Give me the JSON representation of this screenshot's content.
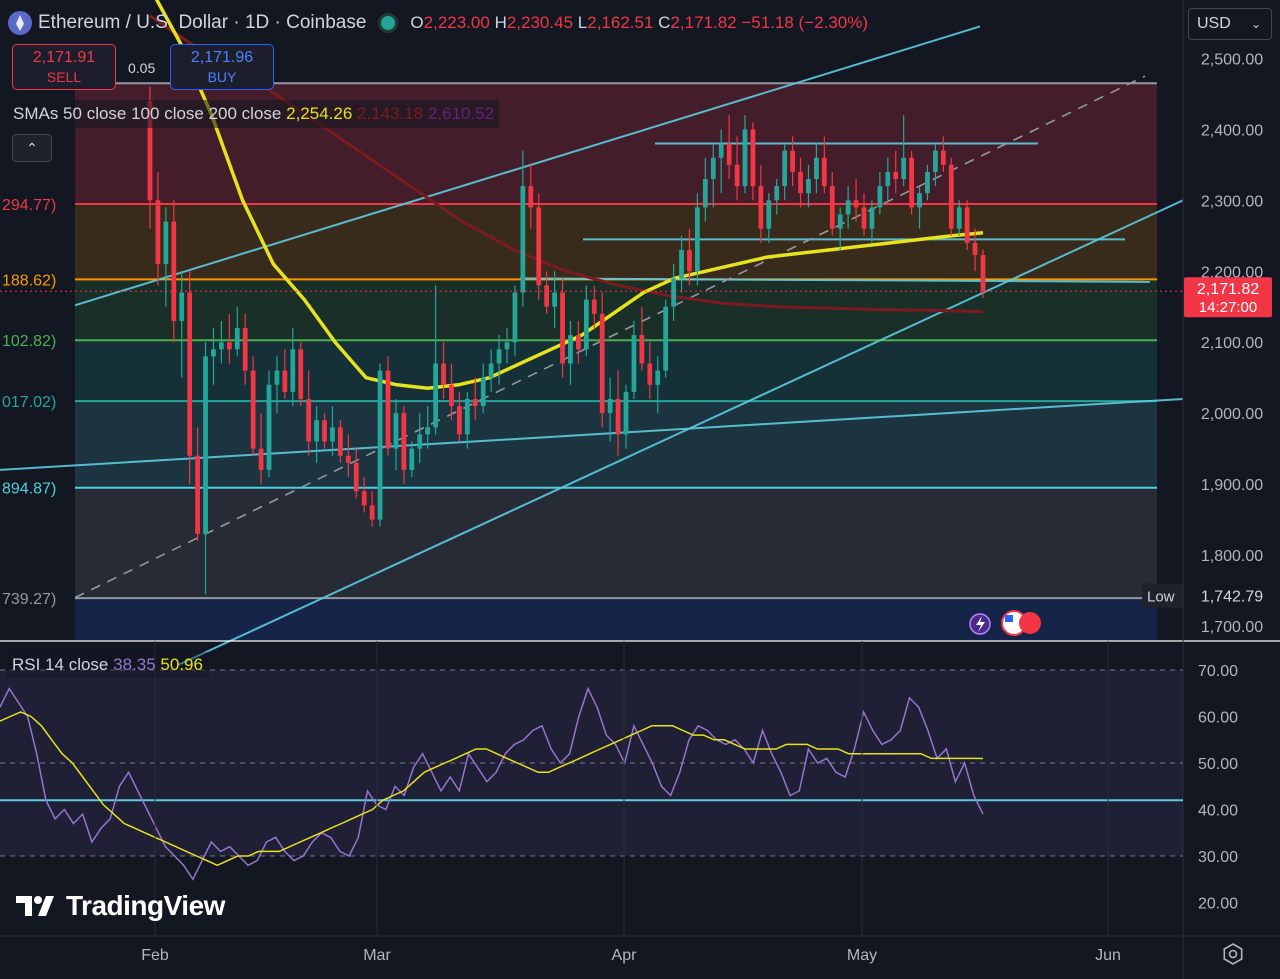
{
  "header": {
    "symbol": "Ethereum / U.S. Dollar · 1D · Coinbase",
    "o_label": "O",
    "o": "2,223.00",
    "h_label": "H",
    "h": "2,230.45",
    "l_label": "L",
    "l": "2,162.51",
    "c_label": "C",
    "c": "2,171.82",
    "change": "−51.18 (−2.30%)"
  },
  "trade": {
    "sell_price": "2,171.91",
    "sell_label": "SELL",
    "spread": "0.05",
    "buy_price": "2,171.96",
    "buy_label": "BUY"
  },
  "currency": "USD",
  "sma_legend": {
    "label": "SMAs 50 close 100 close 200 close",
    "v50": "2,254.26",
    "v100": "2,143.18",
    "v200": "2,610.52"
  },
  "rsi_legend": {
    "label": "RSI 14 close",
    "rsi": "38.35",
    "ma": "50.96"
  },
  "brand": "TradingView",
  "colors": {
    "up": "#26a69a",
    "down": "#f23645",
    "sma50": "#e6e21c",
    "sma100": "#7a1b20",
    "trend": "#5dcbe0",
    "rsi": "#9575cd",
    "rsi_ma": "#e6e21c"
  },
  "chart_data": [
    {
      "type": "candlestick",
      "title": "Ethereum / U.S. Dollar · 1D · Coinbase",
      "x_ticks": [
        "Feb",
        "Mar",
        "Apr",
        "May",
        "Jun"
      ],
      "y_ticks": [
        "2,500.00",
        "2,400.00",
        "2,300.00",
        "2,200.00",
        "2,100.00",
        "2,000.00",
        "1,900.00",
        "1,800.00",
        "1,700.00"
      ],
      "ylim": [
        1680,
        2560
      ],
      "last_price": "2,171.82",
      "countdown": "14:27:00",
      "low_label": "Low",
      "low_value": "1,742.79",
      "fib_levels": [
        {
          "value": 2465,
          "label": "",
          "color": "#9598a1"
        },
        {
          "value": 2294.77,
          "label": "294.77)",
          "color": "#f23645"
        },
        {
          "value": 2188.62,
          "label": "188.62)",
          "color": "#ff9800"
        },
        {
          "value": 2102.82,
          "label": "102.82)",
          "color": "#4caf50"
        },
        {
          "value": 2017.02,
          "label": "017.02)",
          "color": "#26a69a"
        },
        {
          "value": 1894.87,
          "label": "894.87)",
          "color": "#4dd0e1"
        },
        {
          "value": 1739.27,
          "label": "739.27)",
          "color": "#9598a1"
        }
      ],
      "candles": [
        [
          2440,
          2460,
          2260,
          2300
        ],
        [
          2300,
          2340,
          2180,
          2210
        ],
        [
          2210,
          2290,
          2150,
          2270
        ],
        [
          2270,
          2300,
          2100,
          2130
        ],
        [
          2130,
          2200,
          2050,
          2170
        ],
        [
          2170,
          2200,
          1900,
          1940
        ],
        [
          1940,
          1980,
          1820,
          1830
        ],
        [
          1830,
          2100,
          1745,
          2080
        ],
        [
          2080,
          2120,
          2040,
          2090
        ],
        [
          2090,
          2130,
          2070,
          2100
        ],
        [
          2100,
          2140,
          2070,
          2090
        ],
        [
          2090,
          2150,
          2080,
          2120
        ],
        [
          2120,
          2140,
          2040,
          2060
        ],
        [
          2060,
          2080,
          1940,
          1950
        ],
        [
          1950,
          2000,
          1900,
          1920
        ],
        [
          1920,
          2060,
          1910,
          2040
        ],
        [
          2040,
          2080,
          2000,
          2060
        ],
        [
          2060,
          2090,
          2020,
          2030
        ],
        [
          2030,
          2120,
          2010,
          2090
        ],
        [
          2090,
          2100,
          2010,
          2020
        ],
        [
          2020,
          2060,
          1940,
          1960
        ],
        [
          1960,
          2010,
          1930,
          1990
        ],
        [
          1990,
          2000,
          1950,
          1960
        ],
        [
          1960,
          2010,
          1940,
          1980
        ],
        [
          1980,
          1990,
          1930,
          1940
        ],
        [
          1940,
          1970,
          1910,
          1930
        ],
        [
          1930,
          1950,
          1880,
          1890
        ],
        [
          1890,
          1910,
          1860,
          1870
        ],
        [
          1870,
          1890,
          1840,
          1850
        ],
        [
          1850,
          2070,
          1840,
          2060
        ],
        [
          2060,
          2080,
          1940,
          1950
        ],
        [
          1950,
          2020,
          1920,
          2000
        ],
        [
          2000,
          2010,
          1900,
          1920
        ],
        [
          1920,
          1960,
          1910,
          1950
        ],
        [
          1950,
          2000,
          1930,
          1970
        ],
        [
          1970,
          2010,
          1950,
          1980
        ],
        [
          1980,
          2180,
          1970,
          2070
        ],
        [
          2070,
          2100,
          2020,
          2040
        ],
        [
          2040,
          2070,
          1990,
          2010
        ],
        [
          2010,
          2030,
          1960,
          1970
        ],
        [
          1970,
          2030,
          1950,
          2020
        ],
        [
          2020,
          2050,
          1990,
          2010
        ],
        [
          2010,
          2070,
          2000,
          2050
        ],
        [
          2050,
          2090,
          2030,
          2070
        ],
        [
          2070,
          2110,
          2040,
          2090
        ],
        [
          2090,
          2120,
          2070,
          2100
        ],
        [
          2100,
          2180,
          2080,
          2170
        ],
        [
          2170,
          2370,
          2150,
          2320
        ],
        [
          2320,
          2350,
          2260,
          2290
        ],
        [
          2290,
          2310,
          2160,
          2180
        ],
        [
          2180,
          2200,
          2140,
          2150
        ],
        [
          2150,
          2200,
          2120,
          2170
        ],
        [
          2170,
          2190,
          2050,
          2070
        ],
        [
          2070,
          2130,
          2040,
          2110
        ],
        [
          2110,
          2130,
          2070,
          2090
        ],
        [
          2090,
          2180,
          2080,
          2160
        ],
        [
          2160,
          2180,
          2120,
          2140
        ],
        [
          2140,
          2170,
          1980,
          2000
        ],
        [
          2000,
          2050,
          1960,
          2020
        ],
        [
          2020,
          2060,
          1940,
          1970
        ],
        [
          1970,
          2040,
          1950,
          2030
        ],
        [
          2030,
          2130,
          2020,
          2110
        ],
        [
          2110,
          2150,
          2060,
          2070
        ],
        [
          2070,
          2100,
          2020,
          2040
        ],
        [
          2040,
          2080,
          2000,
          2060
        ],
        [
          2060,
          2160,
          2050,
          2150
        ],
        [
          2150,
          2210,
          2130,
          2190
        ],
        [
          2190,
          2250,
          2170,
          2230
        ],
        [
          2230,
          2260,
          2180,
          2200
        ],
        [
          2200,
          2310,
          2180,
          2290
        ],
        [
          2290,
          2360,
          2270,
          2330
        ],
        [
          2330,
          2380,
          2290,
          2360
        ],
        [
          2360,
          2400,
          2310,
          2380
        ],
        [
          2380,
          2420,
          2330,
          2350
        ],
        [
          2350,
          2390,
          2300,
          2320
        ],
        [
          2320,
          2420,
          2310,
          2400
        ],
        [
          2400,
          2410,
          2300,
          2320
        ],
        [
          2320,
          2350,
          2240,
          2260
        ],
        [
          2260,
          2310,
          2240,
          2300
        ],
        [
          2300,
          2330,
          2280,
          2320
        ],
        [
          2320,
          2380,
          2300,
          2370
        ],
        [
          2370,
          2390,
          2320,
          2340
        ],
        [
          2340,
          2360,
          2290,
          2310
        ],
        [
          2310,
          2350,
          2290,
          2330
        ],
        [
          2330,
          2380,
          2310,
          2360
        ],
        [
          2360,
          2390,
          2310,
          2320
        ],
        [
          2320,
          2340,
          2250,
          2260
        ],
        [
          2260,
          2290,
          2230,
          2280
        ],
        [
          2280,
          2320,
          2260,
          2300
        ],
        [
          2300,
          2330,
          2270,
          2290
        ],
        [
          2290,
          2310,
          2250,
          2260
        ],
        [
          2260,
          2300,
          2240,
          2290
        ],
        [
          2290,
          2340,
          2280,
          2320
        ],
        [
          2320,
          2360,
          2300,
          2340
        ],
        [
          2340,
          2370,
          2310,
          2330
        ],
        [
          2330,
          2420,
          2320,
          2360
        ],
        [
          2360,
          2370,
          2280,
          2290
        ],
        [
          2290,
          2320,
          2260,
          2310
        ],
        [
          2310,
          2350,
          2300,
          2340
        ],
        [
          2340,
          2380,
          2320,
          2370
        ],
        [
          2370,
          2390,
          2340,
          2350
        ],
        [
          2350,
          2360,
          2250,
          2260
        ],
        [
          2260,
          2300,
          2250,
          2290
        ],
        [
          2290,
          2300,
          2230,
          2240
        ],
        [
          2240,
          2260,
          2200,
          2223
        ],
        [
          2223,
          2230.45,
          2162.51,
          2171.82
        ]
      ],
      "sma50": [
        2600,
        2520,
        2420,
        2300,
        2210,
        2160,
        2100,
        2050,
        2040,
        2035,
        2040,
        2050,
        2070,
        2090,
        2110,
        2140,
        2170,
        2190,
        2200,
        2210,
        2220,
        2225,
        2230,
        2235,
        2240,
        2245,
        2250,
        2254.26
      ],
      "sma100": [
        2560,
        2510,
        2470,
        2420,
        2370,
        2320,
        2270,
        2230,
        2200,
        2180,
        2165,
        2155,
        2150,
        2148,
        2146,
        2145,
        2143.18
      ]
    },
    {
      "type": "line",
      "title": "RSI 14 close",
      "y_ticks": [
        "70.00",
        "60.00",
        "50.00",
        "40.00",
        "30.00",
        "20.00"
      ],
      "ylim": [
        15,
        74
      ],
      "bands": [
        70,
        50,
        30
      ],
      "support_level": 42,
      "rsi": [
        62,
        66,
        63,
        60,
        52,
        42,
        38,
        40,
        37,
        39,
        33,
        36,
        38,
        45,
        48,
        44,
        40,
        36,
        32,
        30,
        28,
        25,
        29,
        33,
        31,
        32,
        30,
        28,
        29,
        33,
        34,
        31,
        29,
        30,
        33,
        35,
        34,
        31,
        30,
        34,
        44,
        41,
        40,
        45,
        43,
        49,
        52,
        48,
        44,
        47,
        44,
        52,
        49,
        46,
        48,
        52,
        54,
        55,
        57,
        58,
        53,
        50,
        52,
        60,
        66,
        62,
        56,
        54,
        50,
        58,
        54,
        50,
        45,
        43,
        48,
        55,
        58,
        57,
        55,
        54,
        55,
        53,
        50,
        57,
        52,
        48,
        43,
        44,
        53,
        50,
        51,
        48,
        47,
        53,
        61,
        57,
        54,
        55,
        57,
        64,
        62,
        57,
        51,
        53,
        46,
        50,
        43,
        39
      ],
      "rsi_ma": [
        59,
        60,
        61,
        60,
        58,
        55,
        52,
        50,
        47,
        44,
        41,
        39,
        37,
        36,
        35,
        34,
        33,
        32,
        31,
        30,
        29,
        28,
        29,
        30,
        30,
        31,
        31,
        31,
        32,
        33,
        34,
        35,
        36,
        37,
        38,
        39,
        40,
        42,
        43,
        44,
        46,
        48,
        49,
        50,
        51,
        52,
        53,
        53,
        52,
        51,
        50,
        49,
        48,
        48,
        49,
        50,
        51,
        52,
        53,
        54,
        55,
        56,
        57,
        58,
        58,
        58,
        57,
        56,
        56,
        55,
        55,
        54,
        53,
        53,
        53,
        53,
        54,
        54,
        54,
        53,
        53,
        53,
        52,
        52,
        52,
        52,
        52,
        52,
        52,
        52,
        51,
        51,
        51,
        51,
        51,
        50.96
      ]
    }
  ]
}
